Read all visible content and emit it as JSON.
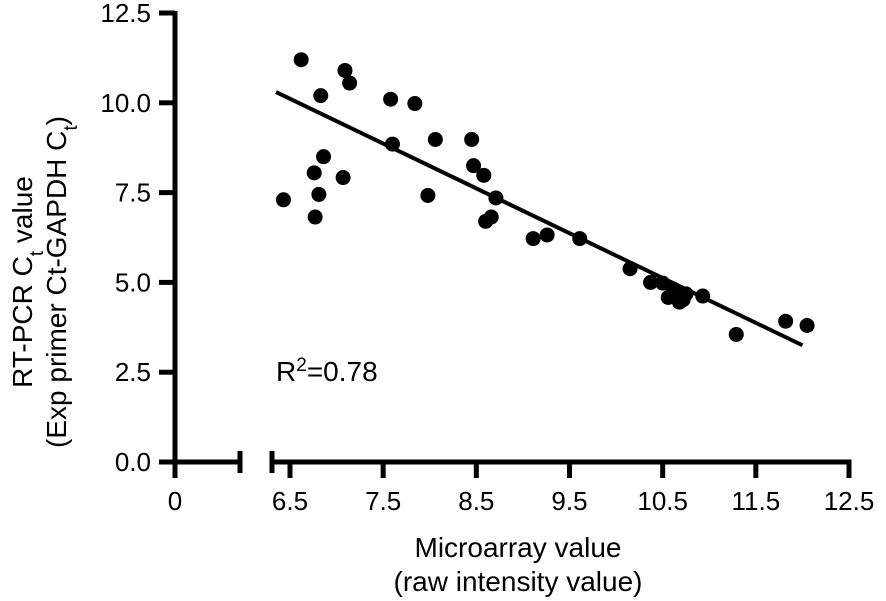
{
  "chart_data": {
    "type": "scatter",
    "title": "",
    "xlabel_line1": "Microarray value",
    "xlabel_line2": "(raw intensity value)",
    "ylabel_line1": "RT-PCR C",
    "ylabel_line1_sub": "t",
    "ylabel_line1_rest": " value",
    "ylabel_line2": "(Exp primer Ct-GAPDH C",
    "ylabel_line2_sub": "t",
    "ylabel_line2_rest": ")",
    "annotation_prefix": "R",
    "annotation_sup": "2",
    "annotation_rest": "=0.78",
    "xlim": [
      6.3,
      12.5
    ],
    "ylim": [
      0,
      12.5
    ],
    "x_break": {
      "left_segment": [
        0,
        1
      ],
      "left_tick_label": "0"
    },
    "x_ticks": [
      6.5,
      7.5,
      8.5,
      9.5,
      10.5,
      11.5,
      12.5
    ],
    "x_tick_labels": [
      "6.5",
      "7.5",
      "8.5",
      "9.5",
      "10.5",
      "11.5",
      "12.5"
    ],
    "y_ticks": [
      0,
      2.5,
      5,
      7.5,
      10,
      12.5
    ],
    "y_tick_labels": [
      "0.0",
      "2.5",
      "5.0",
      "7.5",
      "10.0",
      "12.5"
    ],
    "grid": false,
    "legend": "none",
    "marker_color": "#000000",
    "fit_line": {
      "x": [
        6.35,
        12.0
      ],
      "y": [
        10.3,
        3.25
      ]
    },
    "points": [
      {
        "x": 6.62,
        "y": 11.2
      },
      {
        "x": 6.43,
        "y": 7.3
      },
      {
        "x": 6.76,
        "y": 8.05
      },
      {
        "x": 6.77,
        "y": 6.82
      },
      {
        "x": 6.81,
        "y": 7.45
      },
      {
        "x": 6.83,
        "y": 10.2
      },
      {
        "x": 6.86,
        "y": 8.5
      },
      {
        "x": 7.07,
        "y": 7.92
      },
      {
        "x": 7.09,
        "y": 10.9
      },
      {
        "x": 7.14,
        "y": 10.55
      },
      {
        "x": 7.58,
        "y": 10.1
      },
      {
        "x": 7.6,
        "y": 8.85
      },
      {
        "x": 7.84,
        "y": 9.98
      },
      {
        "x": 7.98,
        "y": 7.42
      },
      {
        "x": 8.06,
        "y": 8.98
      },
      {
        "x": 8.45,
        "y": 8.98
      },
      {
        "x": 8.47,
        "y": 8.25
      },
      {
        "x": 8.58,
        "y": 7.98
      },
      {
        "x": 8.6,
        "y": 6.7
      },
      {
        "x": 8.66,
        "y": 6.82
      },
      {
        "x": 8.71,
        "y": 7.35
      },
      {
        "x": 9.11,
        "y": 6.22
      },
      {
        "x": 9.26,
        "y": 6.32
      },
      {
        "x": 9.61,
        "y": 6.22
      },
      {
        "x": 10.15,
        "y": 5.38
      },
      {
        "x": 10.37,
        "y": 5.0
      },
      {
        "x": 10.5,
        "y": 4.98
      },
      {
        "x": 10.56,
        "y": 4.58
      },
      {
        "x": 10.61,
        "y": 4.82
      },
      {
        "x": 10.65,
        "y": 4.62
      },
      {
        "x": 10.68,
        "y": 4.45
      },
      {
        "x": 10.72,
        "y": 4.52
      },
      {
        "x": 10.75,
        "y": 4.68
      },
      {
        "x": 10.93,
        "y": 4.62
      },
      {
        "x": 11.29,
        "y": 3.55
      },
      {
        "x": 11.82,
        "y": 3.92
      },
      {
        "x": 12.05,
        "y": 3.8
      }
    ]
  }
}
